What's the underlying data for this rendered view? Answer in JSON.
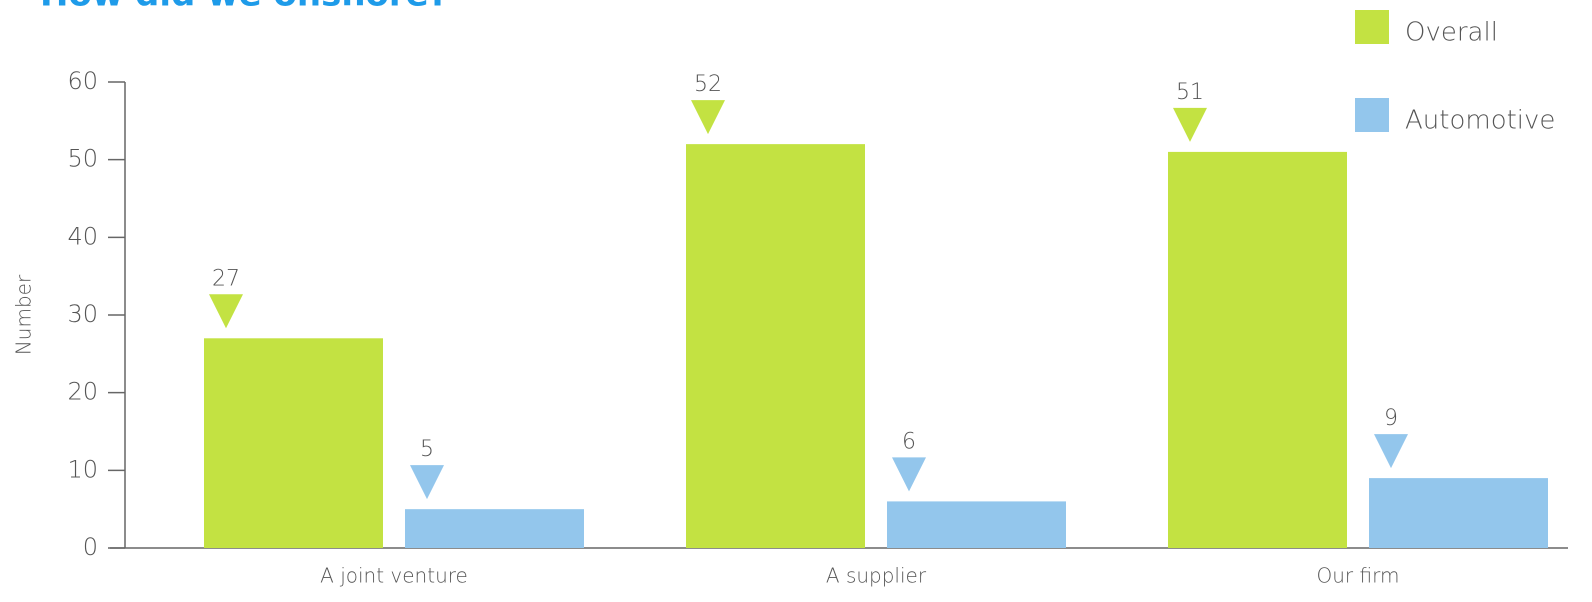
{
  "chart_data": {
    "type": "bar",
    "title": "How did we onshore?",
    "ylabel": "Number",
    "categories": [
      "A joint venture",
      "A supplier",
      "Our firm"
    ],
    "series": [
      {
        "name": "Overall",
        "color": "#c3e242",
        "values": [
          27,
          52,
          51
        ]
      },
      {
        "name": "Automotive",
        "color": "#93c6ec",
        "values": [
          5,
          6,
          9
        ]
      }
    ],
    "ylim": [
      0,
      60
    ],
    "yticks": [
      0,
      10,
      20,
      30,
      40,
      50,
      60
    ],
    "legend": "top-right"
  }
}
